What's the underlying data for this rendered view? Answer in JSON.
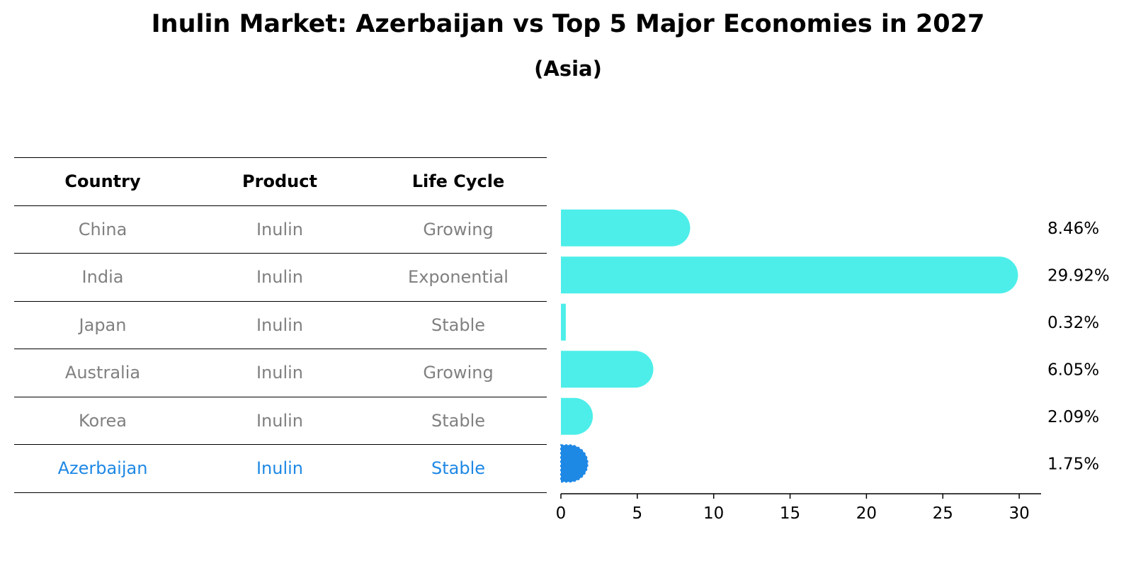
{
  "title": "Inulin Market: Azerbaijan vs Top 5 Major Economies in 2027",
  "subtitle": "(Asia)",
  "table": {
    "headers": [
      "Country",
      "Product",
      "Life Cycle"
    ],
    "rows": [
      [
        "China",
        "Inulin",
        "Growing"
      ],
      [
        "India",
        "Inulin",
        "Exponential"
      ],
      [
        "Japan",
        "Inulin",
        "Stable"
      ],
      [
        "Australia",
        "Inulin",
        "Growing"
      ],
      [
        "Korea",
        "Inulin",
        "Stable"
      ],
      [
        "Azerbaijan",
        "Inulin",
        "Stable"
      ]
    ]
  },
  "colors": {
    "bar": "#4deee9",
    "highlight": "#1e88e5",
    "muted_text": "#808080"
  },
  "chart_data": {
    "type": "bar",
    "orientation": "horizontal",
    "categories": [
      "China",
      "India",
      "Japan",
      "Australia",
      "Korea",
      "Azerbaijan"
    ],
    "values": [
      8.46,
      29.92,
      0.32,
      6.05,
      2.09,
      1.75
    ],
    "value_labels": [
      "8.46%",
      "29.92%",
      "0.32%",
      "6.05%",
      "2.09%",
      "1.75%"
    ],
    "highlight_category": "Azerbaijan",
    "xlim": [
      0,
      31.4
    ],
    "xticks": [
      0,
      5,
      10,
      15,
      20,
      25,
      30
    ],
    "grid": false,
    "legend": "none"
  }
}
